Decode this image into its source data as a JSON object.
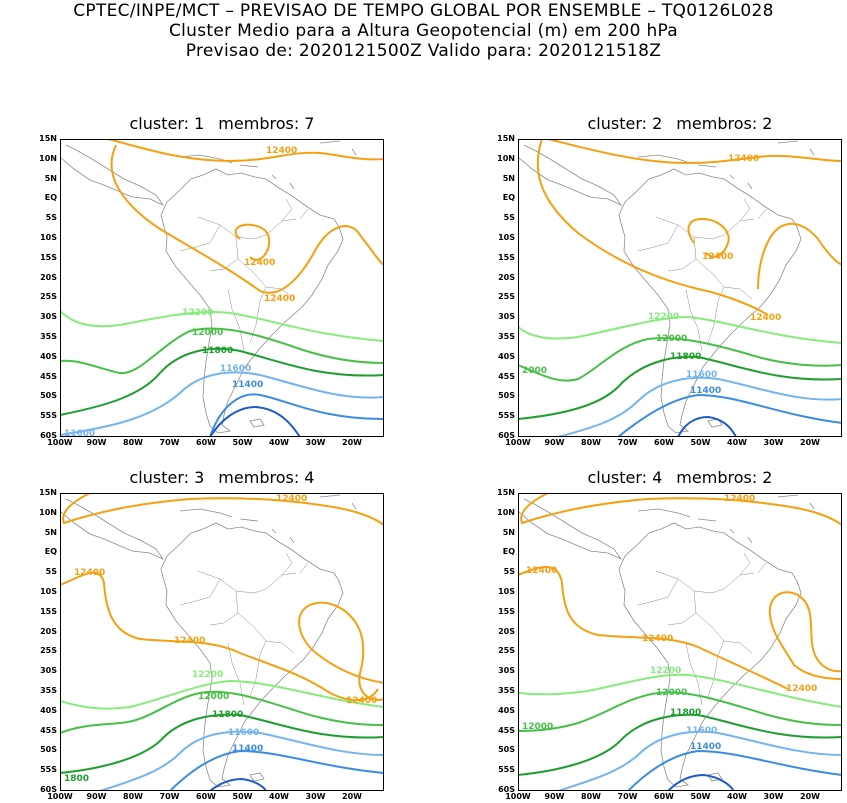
{
  "header": {
    "line1": "CPTEC/INPE/MCT – PREVISAO DE TEMPO GLOBAL POR ENSEMBLE – TQ0126L028",
    "line2": "Cluster Medio para a Altura Geopotencial (m) em 200 hPa",
    "line3": "Previsao de: 2020121500Z   Valido para: 2020121518Z"
  },
  "lat_labels": [
    "15N",
    "10N",
    "5N",
    "EQ",
    "5S",
    "10S",
    "15S",
    "20S",
    "25S",
    "30S",
    "35S",
    "40S",
    "45S",
    "50S",
    "55S",
    "60S"
  ],
  "lon_labels": [
    "100W",
    "90W",
    "80W",
    "70W",
    "60W",
    "50W",
    "40W",
    "30W",
    "20W"
  ],
  "colors": {
    "c12400": "#f4a011",
    "c12200": "#86ec7c",
    "c12000": "#46c046",
    "c11800": "#1e9e2e",
    "c11600": "#74b4f0",
    "c11400": "#3c8ce0",
    "c11200": "#1e5ac8",
    "coast": "#8c8c8c"
  },
  "panels": [
    {
      "cluster_label": "cluster: 1",
      "members_label": "membros: 7",
      "labels": {
        "a": "12400",
        "b": "12400",
        "c": "12400",
        "d": "12200",
        "e": "12000",
        "f": "11800",
        "g": "11600",
        "h": "11400",
        "i": "11600"
      }
    },
    {
      "cluster_label": "cluster: 2",
      "members_label": "membros: 2",
      "labels": {
        "a": "12400",
        "b": "12400",
        "c": "12400",
        "d": "12200",
        "e": "12000",
        "f": "11800",
        "g": "11600",
        "h": "11400",
        "i": "2000"
      }
    },
    {
      "cluster_label": "cluster: 3",
      "members_label": "membros: 4",
      "labels": {
        "a": "12400",
        "b": "12400",
        "c": "12400",
        "d": "12400",
        "e": "12200",
        "f": "12000",
        "g": "11800",
        "h": "11600",
        "i": "11400",
        "j": "1800"
      }
    },
    {
      "cluster_label": "cluster: 4",
      "members_label": "membros: 2",
      "labels": {
        "a": "12400",
        "b": "12400",
        "c": "12400",
        "d": "12400",
        "e": "12200",
        "f": "12000",
        "g": "11800",
        "h": "11600",
        "i": "11400",
        "j": "12000"
      }
    }
  ]
}
